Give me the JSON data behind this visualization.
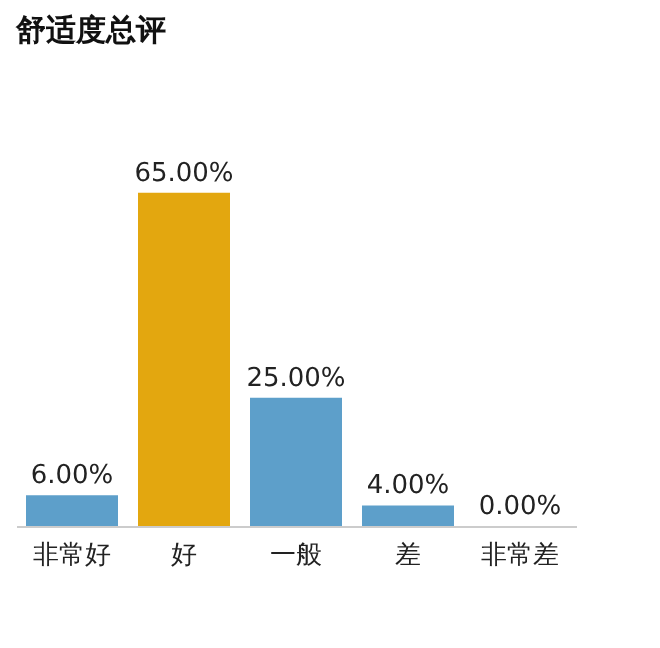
{
  "chart_data": {
    "type": "bar",
    "title": "舒适度总评",
    "categories": [
      "非常好",
      "好",
      "一般",
      "差",
      "非常差"
    ],
    "values": [
      6,
      65,
      25,
      4,
      0
    ],
    "value_labels": [
      "6.00%",
      "65.00%",
      "25.00%",
      "4.00%",
      "0.00%"
    ],
    "colors": [
      "#5d9fca",
      "#e3a70f",
      "#5d9fca",
      "#5d9fca",
      "#5d9fca"
    ]
  }
}
